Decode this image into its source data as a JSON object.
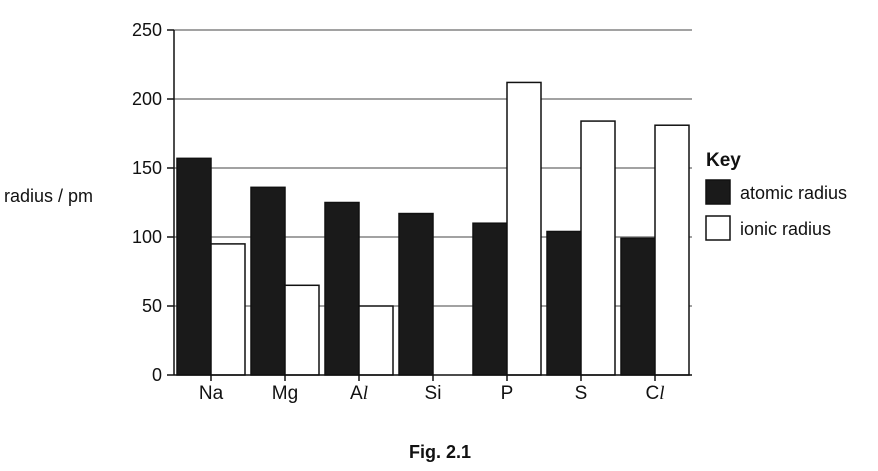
{
  "chart_data": {
    "type": "bar",
    "caption": "Fig. 2.1",
    "ylabel": "radius / pm",
    "ylim": [
      0,
      250
    ],
    "yticks": [
      0,
      50,
      100,
      150,
      200,
      250
    ],
    "grid": true,
    "legend_position": "right",
    "legend_title": "Key",
    "categories": [
      {
        "base": "Na",
        "suffix": ""
      },
      {
        "base": "Mg",
        "suffix": ""
      },
      {
        "base": "A",
        "suffix": "l"
      },
      {
        "base": "Si",
        "suffix": ""
      },
      {
        "base": "P",
        "suffix": ""
      },
      {
        "base": "S",
        "suffix": ""
      },
      {
        "base": "C",
        "suffix": "l"
      }
    ],
    "series": [
      {
        "name": "atomic radius",
        "color": "#1a1a1a",
        "values": [
          157,
          136,
          125,
          117,
          110,
          104,
          99
        ]
      },
      {
        "name": "ionic radius",
        "color": "#ffffff",
        "values": [
          95,
          65,
          50,
          null,
          212,
          184,
          181
        ]
      }
    ]
  }
}
